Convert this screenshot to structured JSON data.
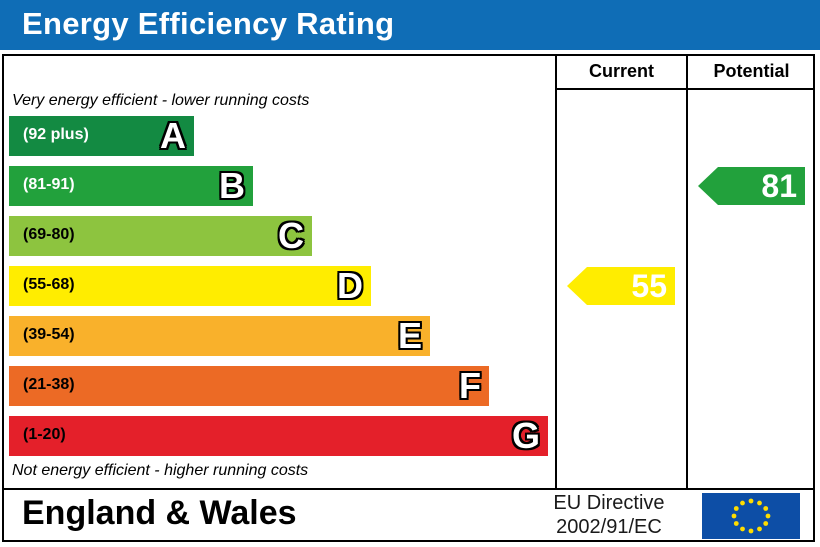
{
  "title": "Energy Efficiency Rating",
  "columns": {
    "current": "Current",
    "potential": "Potential"
  },
  "notes": {
    "top": "Very energy efficient - lower running costs",
    "bottom": "Not energy efficient - higher running costs"
  },
  "footer": {
    "region": "England & Wales",
    "directive_line1": "EU Directive",
    "directive_line2": "2002/91/EC",
    "flag_icon": "eu-flag-icon"
  },
  "chart_data": {
    "type": "bar",
    "title": "Energy Efficiency Rating",
    "categories": [
      "A",
      "B",
      "C",
      "D",
      "E",
      "F",
      "G"
    ],
    "bands": [
      {
        "letter": "A",
        "range": "(92 plus)",
        "color": "#138a42",
        "text_color": "#ffffff"
      },
      {
        "letter": "B",
        "range": "(81-91)",
        "color": "#22a13c",
        "text_color": "#ffffff"
      },
      {
        "letter": "C",
        "range": "(69-80)",
        "color": "#8dc43f",
        "text_color": "#000000"
      },
      {
        "letter": "D",
        "range": "(55-68)",
        "color": "#ffed00",
        "text_color": "#000000"
      },
      {
        "letter": "E",
        "range": "(39-54)",
        "color": "#f9b12b",
        "text_color": "#000000"
      },
      {
        "letter": "F",
        "range": "(21-38)",
        "color": "#ec6a25",
        "text_color": "#000000"
      },
      {
        "letter": "G",
        "range": "(1-20)",
        "color": "#e4202a",
        "text_color": "#000000"
      }
    ],
    "current": {
      "value": 55,
      "band": "D",
      "color": "#ffed00",
      "text_color": "#ffffff"
    },
    "potential": {
      "value": 81,
      "band": "B",
      "color": "#22a13c",
      "text_color": "#ffffff"
    }
  }
}
